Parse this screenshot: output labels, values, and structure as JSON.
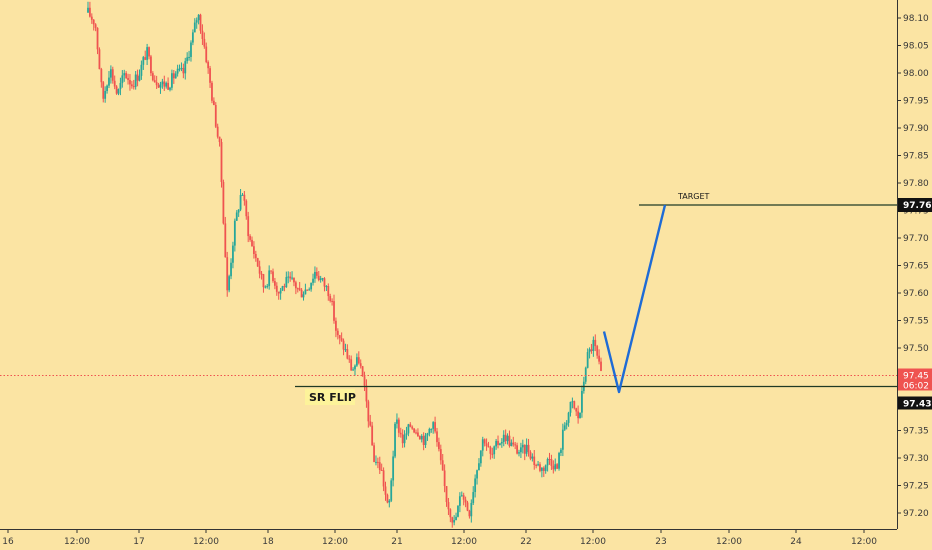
{
  "chart_data": {
    "type": "candlestick",
    "title": "",
    "xlabel": "",
    "ylabel": "",
    "ylim": [
      97.16,
      98.14
    ],
    "y_ticks": [
      98.1,
      98.05,
      98.0,
      97.95,
      97.9,
      97.85,
      97.8,
      97.75,
      97.7,
      97.65,
      97.6,
      97.55,
      97.5,
      97.45,
      97.4,
      97.35,
      97.3,
      97.25,
      97.2
    ],
    "x_ticks": [
      "16",
      "12:00",
      "17",
      "12:00",
      "18",
      "12:00",
      "21",
      "12:00",
      "22",
      "12:00",
      "23",
      "12:00",
      "24",
      "12:00"
    ],
    "grid": false,
    "colors": {
      "up": "#26a69a",
      "down": "#ef5350",
      "level": "#1f3a24",
      "projection": "#1e6bd6",
      "current_price": "#ef5350",
      "background": "#fbe4a3"
    },
    "current_price": {
      "value": 97.45,
      "countdown": "06:02"
    },
    "levels": [
      {
        "label": "SR FLIP",
        "value": 97.43
      },
      {
        "label": "TARGET",
        "value": 97.76
      }
    ],
    "projection_path": [
      {
        "price": 97.53
      },
      {
        "price": 97.42
      },
      {
        "price": 97.76
      }
    ],
    "price_path": [
      98.11,
      98.09,
      97.95,
      98.01,
      97.96,
      98.0,
      97.98,
      98.0,
      98.04,
      97.99,
      97.98,
      97.98,
      98.0,
      98.0,
      98.05,
      98.11,
      98.04,
      97.95,
      97.86,
      97.6,
      97.72,
      97.79,
      97.7,
      97.66,
      97.61,
      97.64,
      97.6,
      97.62,
      97.62,
      97.6,
      97.61,
      97.64,
      97.62,
      97.6,
      97.52,
      97.5,
      97.46,
      97.48,
      97.4,
      97.3,
      97.28,
      97.2,
      97.37,
      97.33,
      97.36,
      97.35,
      97.33,
      97.37,
      97.3,
      97.22,
      97.18,
      97.24,
      97.2,
      97.28,
      97.34,
      97.3,
      97.33,
      97.34,
      97.32,
      97.31,
      97.32,
      97.29,
      97.28,
      97.3,
      97.28,
      97.36,
      97.4,
      97.37,
      97.48,
      97.51,
      97.45
    ]
  }
}
